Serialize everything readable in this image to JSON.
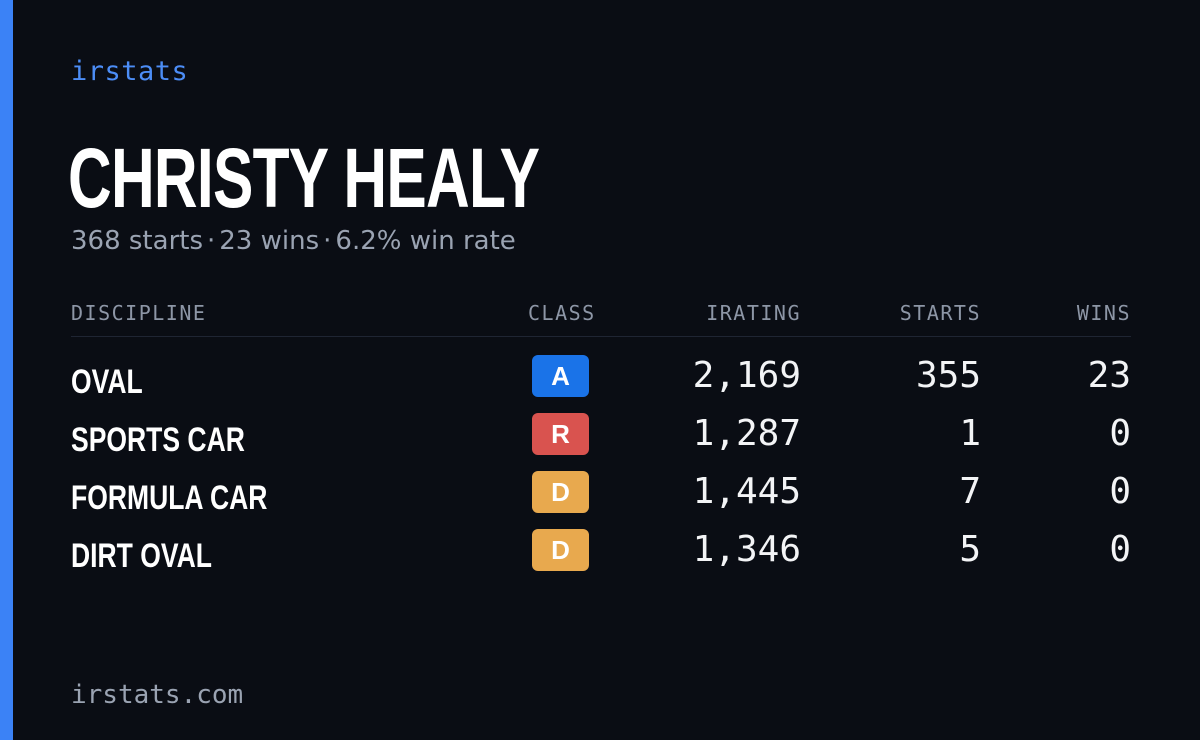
{
  "brand": "irstats",
  "driver": {
    "name": "CHRISTY HEALY",
    "starts": "368 starts",
    "wins": "23 wins",
    "win_rate": "6.2% win rate",
    "separator": "·"
  },
  "table": {
    "headers": {
      "discipline": "DISCIPLINE",
      "class": "CLASS",
      "irating": "IRATING",
      "starts": "STARTS",
      "wins": "WINS"
    },
    "rows": [
      {
        "discipline": "OVAL",
        "class": "A",
        "class_color": "#1a73e8",
        "irating": "2,169",
        "starts": "355",
        "wins": "23"
      },
      {
        "discipline": "SPORTS CAR",
        "class": "R",
        "class_color": "#d9534f",
        "irating": "1,287",
        "starts": "1",
        "wins": "0"
      },
      {
        "discipline": "FORMULA CAR",
        "class": "D",
        "class_color": "#e8a94e",
        "irating": "1,445",
        "starts": "7",
        "wins": "0"
      },
      {
        "discipline": "DIRT OVAL",
        "class": "D",
        "class_color": "#e8a94e",
        "irating": "1,346",
        "starts": "5",
        "wins": "0"
      }
    ]
  },
  "footer": "irstats.com",
  "colors": {
    "accent": "#3b82f6",
    "background": "#0a0d14"
  }
}
